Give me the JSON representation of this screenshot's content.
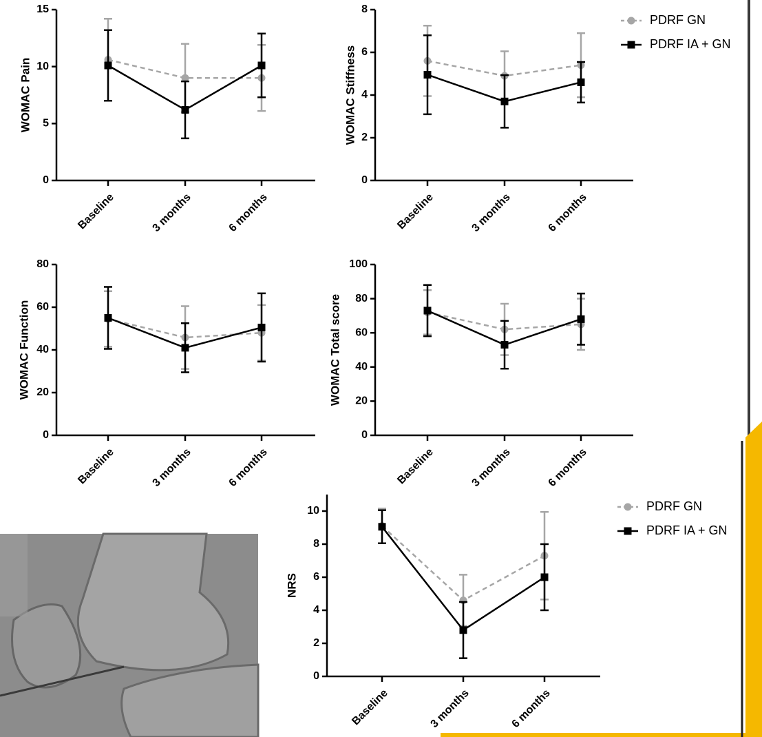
{
  "chart_data": [
    {
      "type": "line",
      "ylabel": "WOMAC Pain",
      "categories": [
        "Baseline",
        "3 months",
        "6 months"
      ],
      "ylim": [
        0,
        15
      ],
      "yticks": [
        0,
        5,
        10,
        15
      ],
      "series": [
        {
          "name": "PDRF GN",
          "color": "#a6a6a6",
          "line_style": "dashed",
          "marker": "circle",
          "values": [
            10.6,
            9.0,
            9.0
          ],
          "errors": [
            3.6,
            3.0,
            2.9
          ]
        },
        {
          "name": "PDRF IA + GN",
          "color": "#000000",
          "line_style": "solid",
          "marker": "square",
          "values": [
            10.1,
            6.2,
            10.1
          ],
          "errors": [
            3.1,
            2.5,
            2.8
          ]
        }
      ]
    },
    {
      "type": "line",
      "ylabel": "WOMAC Stiffness",
      "categories": [
        "Baseline",
        "3 months",
        "6 months"
      ],
      "ylim": [
        0,
        8
      ],
      "yticks": [
        0,
        2,
        4,
        6,
        8
      ],
      "legend": "outside-right",
      "series": [
        {
          "name": "PDRF GN",
          "color": "#a6a6a6",
          "line_style": "dashed",
          "marker": "circle",
          "values": [
            5.6,
            4.9,
            5.4
          ],
          "errors": [
            1.65,
            1.15,
            1.5
          ]
        },
        {
          "name": "PDRF IA + GN",
          "color": "#000000",
          "line_style": "solid",
          "marker": "square",
          "values": [
            4.95,
            3.7,
            4.6
          ],
          "errors": [
            1.85,
            1.23,
            0.95
          ]
        }
      ]
    },
    {
      "type": "line",
      "ylabel": "WOMAC Function",
      "categories": [
        "Baseline",
        "3 months",
        "6 months"
      ],
      "ylim": [
        0,
        80
      ],
      "yticks": [
        0,
        20,
        40,
        60,
        80
      ],
      "series": [
        {
          "name": "PDRF GN",
          "color": "#a6a6a6",
          "line_style": "dashed",
          "marker": "circle",
          "values": [
            54.5,
            45.8,
            48
          ],
          "errors": [
            13,
            14.7,
            13
          ]
        },
        {
          "name": "PDRF IA + GN",
          "color": "#000000",
          "line_style": "solid",
          "marker": "square",
          "values": [
            55,
            41,
            50.5
          ],
          "errors": [
            14.5,
            11.5,
            16
          ]
        }
      ]
    },
    {
      "type": "line",
      "ylabel": "WOMAC Total score",
      "categories": [
        "Baseline",
        "3 months",
        "6 months"
      ],
      "ylim": [
        0,
        100
      ],
      "yticks": [
        0,
        20,
        40,
        60,
        80,
        100
      ],
      "series": [
        {
          "name": "PDRF GN",
          "color": "#a6a6a6",
          "line_style": "dashed",
          "marker": "circle",
          "values": [
            72,
            62,
            65
          ],
          "errors": [
            13,
            15,
            15
          ]
        },
        {
          "name": "PDRF IA + GN",
          "color": "#000000",
          "line_style": "solid",
          "marker": "square",
          "values": [
            73,
            53,
            68
          ],
          "errors": [
            15,
            14,
            15
          ]
        }
      ]
    },
    {
      "type": "line",
      "ylabel": "NRS",
      "categories": [
        "Baseline",
        "3 months",
        "6 months"
      ],
      "ylim": [
        0,
        11
      ],
      "yticks": [
        0,
        2,
        4,
        6,
        8,
        10
      ],
      "legend": "outside-right",
      "series": [
        {
          "name": "PDRF GN",
          "color": "#a6a6a6",
          "line_style": "dashed",
          "marker": "circle",
          "values": [
            9.1,
            4.6,
            7.3
          ],
          "errors": [
            1.05,
            1.55,
            2.65
          ]
        },
        {
          "name": "PDRF IA + GN",
          "color": "#000000",
          "line_style": "solid",
          "marker": "square",
          "values": [
            9.05,
            2.8,
            6.0
          ],
          "errors": [
            1.0,
            1.7,
            2.0
          ]
        }
      ]
    }
  ]
}
